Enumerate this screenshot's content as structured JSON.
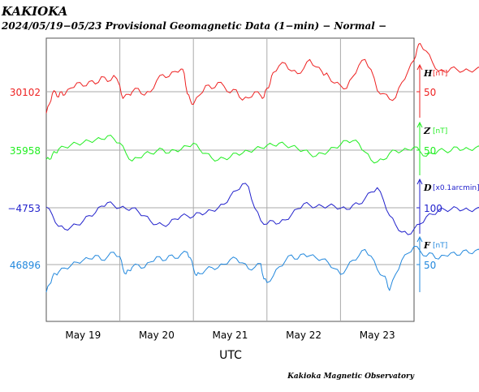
{
  "header": {
    "station": "KAKIOKA",
    "subtitle": "2024/05/19−05/23  Provisional Geomagnetic Data (1−min)  − Normal −"
  },
  "footer": {
    "credit": "Kakioka Magnetic Observatory"
  },
  "chart_data": {
    "type": "line",
    "xlabel": "UTC",
    "x_ticks": [
      "May 19",
      "May 20",
      "May 21",
      "May 22",
      "May 23"
    ],
    "x_range": [
      "2024-05-19T00:00",
      "2024-05-24T00:00"
    ],
    "grid": true,
    "series": [
      {
        "name": "H",
        "unit": "[nT]",
        "baseline": "30102",
        "scale_tick": "50",
        "color": "#ee2222",
        "time_hours": [
          0,
          1,
          2,
          3,
          4,
          5,
          6,
          8,
          10,
          12,
          14,
          16,
          18,
          20,
          22,
          24,
          25,
          27,
          28,
          30,
          32,
          34,
          36,
          38,
          40,
          42,
          44,
          45,
          46,
          47,
          48,
          50,
          52,
          54,
          56,
          58,
          60,
          62,
          64,
          66,
          68,
          70,
          71,
          72,
          73,
          74,
          76,
          78,
          80,
          82,
          84,
          86,
          88,
          90,
          91,
          92,
          94,
          96,
          98,
          100,
          102,
          104,
          106,
          108,
          110,
          112,
          114,
          116,
          118,
          120,
          121,
          122,
          124,
          126,
          128,
          130,
          132,
          134,
          136,
          138,
          140,
          142,
          144,
          146,
          148,
          150,
          152,
          154,
          156,
          158,
          160
        ],
        "values": [
          -40,
          -20,
          -5,
          0,
          -10,
          0,
          -5,
          5,
          15,
          10,
          20,
          15,
          25,
          20,
          30,
          10,
          -10,
          -5,
          0,
          5,
          -5,
          0,
          20,
          30,
          25,
          35,
          40,
          30,
          -5,
          -15,
          -20,
          -5,
          10,
          5,
          15,
          10,
          0,
          5,
          -15,
          -10,
          0,
          -5,
          -10,
          5,
          15,
          35,
          45,
          50,
          35,
          30,
          40,
          55,
          45,
          35,
          30,
          30,
          15,
          10,
          5,
          25,
          45,
          55,
          40,
          0,
          -5,
          -15,
          -10,
          15,
          35,
          55,
          75,
          85,
          70,
          50,
          35,
          35,
          40,
          40,
          35,
          35,
          40,
          40,
          45,
          40,
          50,
          45,
          55,
          50,
          60,
          55,
          65
        ]
      },
      {
        "name": "Z",
        "unit": "[nT]",
        "baseline": "35958",
        "scale_tick": "50",
        "color": "#22ee22",
        "time_hours": [
          0,
          1,
          2,
          3,
          4,
          6,
          8,
          10,
          12,
          14,
          16,
          18,
          20,
          22,
          24,
          26,
          28,
          30,
          32,
          34,
          36,
          38,
          40,
          42,
          44,
          46,
          48,
          50,
          52,
          54,
          56,
          58,
          60,
          62,
          64,
          66,
          68,
          70,
          72,
          74,
          76,
          78,
          80,
          82,
          84,
          86,
          88,
          90,
          92,
          94,
          96,
          98,
          100,
          102,
          104,
          106,
          108,
          110,
          112,
          114,
          116,
          118,
          120,
          122,
          124,
          126,
          128,
          130,
          132,
          134,
          136,
          138,
          140,
          142,
          144,
          146,
          148,
          150,
          152,
          154,
          156,
          158,
          160
        ],
        "values": [
          -25,
          -20,
          -10,
          -5,
          0,
          5,
          10,
          15,
          20,
          25,
          25,
          30,
          35,
          30,
          20,
          -10,
          -25,
          -20,
          -10,
          -5,
          -5,
          0,
          -10,
          0,
          5,
          10,
          15,
          5,
          -10,
          -20,
          -25,
          -20,
          -15,
          -10,
          -5,
          0,
          5,
          5,
          10,
          15,
          20,
          15,
          10,
          5,
          0,
          -10,
          -15,
          -10,
          0,
          5,
          15,
          25,
          25,
          15,
          -5,
          -25,
          -30,
          -25,
          -10,
          0,
          -5,
          0,
          5,
          -5,
          -15,
          -10,
          0,
          0,
          0,
          5,
          0,
          5,
          5,
          5,
          10,
          10,
          10,
          15,
          20,
          20,
          25,
          30,
          25
        ]
      },
      {
        "name": "D",
        "unit": "[x0.1arcmin]",
        "baseline": "−4753",
        "scale_tick": "100",
        "color": "#2222cc",
        "time_hours": [
          0,
          2,
          4,
          6,
          8,
          10,
          12,
          14,
          16,
          18,
          20,
          22,
          24,
          26,
          28,
          30,
          32,
          34,
          36,
          38,
          40,
          42,
          44,
          46,
          48,
          50,
          52,
          54,
          56,
          58,
          60,
          62,
          64,
          66,
          68,
          70,
          72,
          74,
          76,
          78,
          80,
          82,
          84,
          86,
          88,
          90,
          92,
          94,
          96,
          98,
          100,
          102,
          104,
          106,
          108,
          110,
          112,
          114,
          116,
          118,
          120,
          122,
          124,
          126,
          128,
          130,
          132,
          134,
          136,
          138,
          140,
          142,
          144,
          146,
          148,
          150,
          152,
          154,
          156,
          158,
          160
        ],
        "values": [
          0,
          -40,
          -90,
          -100,
          -95,
          -80,
          -60,
          -40,
          -20,
          10,
          20,
          15,
          0,
          -10,
          -5,
          -20,
          -40,
          -60,
          -80,
          -90,
          -80,
          -60,
          -40,
          -35,
          -40,
          -30,
          -20,
          -10,
          0,
          20,
          60,
          80,
          120,
          100,
          0,
          -60,
          -80,
          -70,
          -75,
          -60,
          -40,
          -10,
          20,
          15,
          10,
          10,
          5,
          10,
          0,
          -5,
          10,
          20,
          50,
          80,
          100,
          40,
          -40,
          -80,
          -120,
          -130,
          -110,
          -80,
          -50,
          -30,
          -15,
          -10,
          -10,
          -5,
          -10,
          -10,
          -5,
          -10,
          -5,
          -10,
          -10,
          -5,
          -5,
          0,
          0,
          10,
          30
        ]
      },
      {
        "name": "F",
        "unit": "[nT]",
        "baseline": "46896",
        "scale_tick": "50",
        "color": "#2288dd",
        "time_hours": [
          0,
          1,
          2,
          3,
          4,
          6,
          8,
          10,
          12,
          14,
          16,
          18,
          20,
          22,
          24,
          25,
          26,
          27,
          28,
          30,
          32,
          34,
          36,
          38,
          40,
          42,
          44,
          46,
          47,
          48,
          49,
          50,
          52,
          54,
          56,
          58,
          60,
          62,
          64,
          66,
          68,
          70,
          71,
          72,
          74,
          76,
          78,
          80,
          82,
          84,
          86,
          88,
          90,
          92,
          94,
          96,
          98,
          100,
          102,
          104,
          106,
          108,
          110,
          111,
          112,
          114,
          116,
          118,
          120,
          122,
          124,
          126,
          128,
          130,
          132,
          134,
          136,
          138,
          140,
          142,
          144,
          146,
          148,
          150,
          152,
          154,
          156,
          158,
          160
        ],
        "values": [
          -60,
          -45,
          -30,
          -20,
          -15,
          -10,
          -5,
          5,
          10,
          15,
          20,
          10,
          15,
          30,
          20,
          -10,
          -20,
          -15,
          -5,
          0,
          -5,
          5,
          15,
          10,
          20,
          15,
          25,
          30,
          15,
          -10,
          -25,
          -20,
          -10,
          -5,
          -5,
          0,
          10,
          15,
          5,
          -10,
          -5,
          0,
          -30,
          -40,
          -25,
          -5,
          10,
          20,
          15,
          25,
          20,
          15,
          10,
          5,
          -10,
          -20,
          -10,
          10,
          20,
          35,
          20,
          -10,
          -25,
          -35,
          -60,
          -20,
          10,
          25,
          40,
          30,
          20,
          25,
          15,
          20,
          25,
          20,
          30,
          25,
          30,
          30,
          35,
          35,
          35,
          40,
          40,
          45,
          45,
          50,
          50
        ]
      }
    ]
  }
}
